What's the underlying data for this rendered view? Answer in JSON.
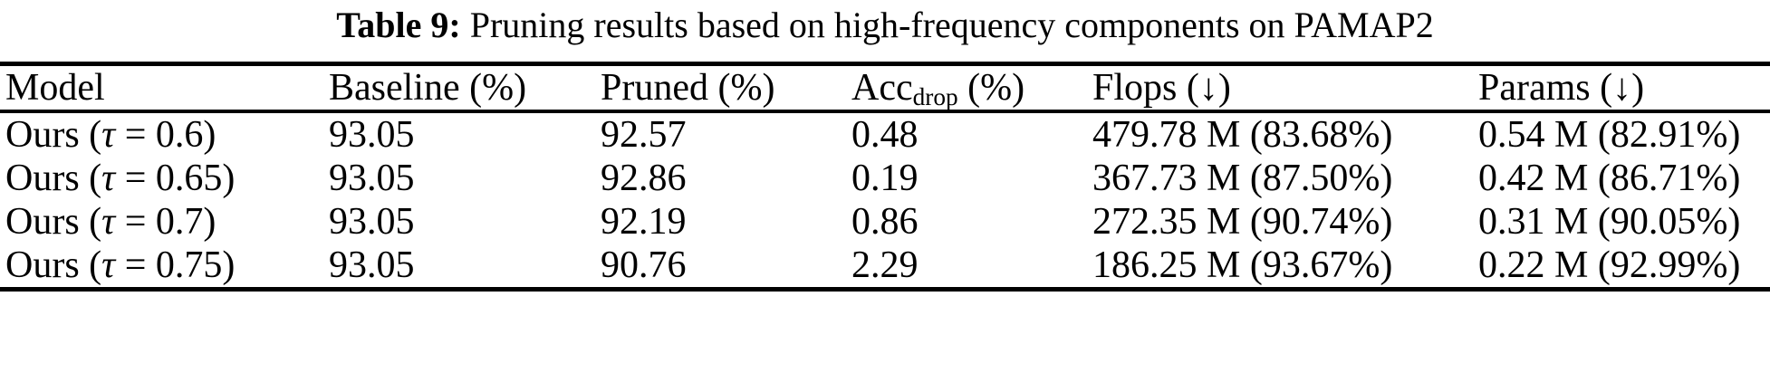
{
  "caption": {
    "label": "Table 9:",
    "text": " Pruning results based on high-frequency components on PAMAP2"
  },
  "table": {
    "headers": {
      "model": "Model",
      "baseline": "Baseline (%)",
      "pruned": "Pruned (%)",
      "acc_main": "Acc",
      "acc_sub": "drop",
      "acc_suffix": " (%)",
      "flops": "Flops (↓)",
      "params": "Params (↓)"
    },
    "rows": [
      {
        "model_pre": "Ours (",
        "model_tau": "τ",
        "model_post": " = 0.6)",
        "baseline": "93.05",
        "pruned": "92.57",
        "acc_drop": "0.48",
        "flops": "479.78 M (83.68%)",
        "params": "0.54 M (82.91%)"
      },
      {
        "model_pre": "Ours (",
        "model_tau": "τ",
        "model_post": " = 0.65)",
        "baseline": "93.05",
        "pruned": "92.86",
        "acc_drop": "0.19",
        "flops": "367.73 M (87.50%)",
        "params": "0.42 M (86.71%)"
      },
      {
        "model_pre": "Ours (",
        "model_tau": "τ",
        "model_post": " = 0.7)",
        "baseline": "93.05",
        "pruned": "92.19",
        "acc_drop": "0.86",
        "flops": "272.35 M (90.74%)",
        "params": "0.31 M (90.05%)"
      },
      {
        "model_pre": "Ours (",
        "model_tau": "τ",
        "model_post": " = 0.75)",
        "baseline": "93.05",
        "pruned": "90.76",
        "acc_drop": "2.29",
        "flops": "186.25 M (93.67%)",
        "params": "0.22 M (92.99%)"
      }
    ]
  }
}
